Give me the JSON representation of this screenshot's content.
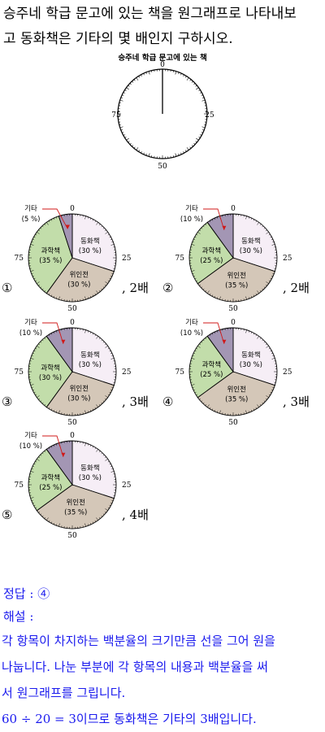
{
  "question": {
    "lines": [
      "승주네 학급 문고에 있는 책을 원그래프로 나타내보",
      "고 동화책은 기타의 몇 배인지 구하시오."
    ]
  },
  "reference_graph": {
    "title": "승주네 학급 문고에 있는 책",
    "ticks": [
      "0",
      "25",
      "50",
      "75"
    ]
  },
  "options": [
    {
      "marker": "①",
      "answer": "2배",
      "slices": [
        {
          "name": "동화책",
          "pct_label": "(30 %)",
          "percent": 30,
          "color": "#f6eef6"
        },
        {
          "name": "위인전",
          "pct_label": "(30 %)",
          "percent": 30,
          "color": "#d4c7b8"
        },
        {
          "name": "과학책",
          "pct_label": "(35 %)",
          "percent": 35,
          "color": "#c2ddaa"
        },
        {
          "name": "기타",
          "pct_label": "(5 %)",
          "percent": 5,
          "color": "#a396b4"
        }
      ]
    },
    {
      "marker": "②",
      "answer": "2배",
      "slices": [
        {
          "name": "동화책",
          "pct_label": "(30 %)",
          "percent": 30,
          "color": "#f6eef6"
        },
        {
          "name": "위인전",
          "pct_label": "(35 %)",
          "percent": 35,
          "color": "#d4c7b8"
        },
        {
          "name": "과학책",
          "pct_label": "(25 %)",
          "percent": 25,
          "color": "#c2ddaa"
        },
        {
          "name": "기타",
          "pct_label": "(10 %)",
          "percent": 10,
          "color": "#a396b4"
        }
      ]
    },
    {
      "marker": "③",
      "answer": "3배",
      "slices": [
        {
          "name": "동화책",
          "pct_label": "(30 %)",
          "percent": 30,
          "color": "#f6eef6"
        },
        {
          "name": "위인전",
          "pct_label": "(30 %)",
          "percent": 30,
          "color": "#d4c7b8"
        },
        {
          "name": "과학책",
          "pct_label": "(30 %)",
          "percent": 30,
          "color": "#c2ddaa"
        },
        {
          "name": "기타",
          "pct_label": "(10 %)",
          "percent": 10,
          "color": "#a396b4"
        }
      ]
    },
    {
      "marker": "④",
      "answer": "3배",
      "slices": [
        {
          "name": "동화책",
          "pct_label": "(30 %)",
          "percent": 30,
          "color": "#f6eef6"
        },
        {
          "name": "위인전",
          "pct_label": "(35 %)",
          "percent": 35,
          "color": "#d4c7b8"
        },
        {
          "name": "과학책",
          "pct_label": "(25 %)",
          "percent": 25,
          "color": "#c2ddaa"
        },
        {
          "name": "기타",
          "pct_label": "(10 %)",
          "percent": 10,
          "color": "#a396b4"
        }
      ]
    },
    {
      "marker": "⑤",
      "answer": "4배",
      "slices": [
        {
          "name": "동화책",
          "pct_label": "(30 %)",
          "percent": 30,
          "color": "#f6eef6"
        },
        {
          "name": "위인전",
          "pct_label": "(35 %)",
          "percent": 35,
          "color": "#d4c7b8"
        },
        {
          "name": "과학책",
          "pct_label": "(25 %)",
          "percent": 25,
          "color": "#c2ddaa"
        },
        {
          "name": "기타",
          "pct_label": "(10 %)",
          "percent": 10,
          "color": "#a396b4"
        }
      ]
    }
  ],
  "solution": {
    "answer_line": "정답 : ④",
    "explanation_label": "해설 :",
    "lines": [
      "각 항목이 차지하는 백분율의 크기만큼 선을 그어 원을",
      "나눕니다. 나눈 부분에 각 항목의 내용과 백분율을 써",
      "서 원그래프를 그립니다.",
      "60 ÷ 20 = 3이므로 동화책은 기타의 3배입니다."
    ],
    "color": "#1a1aee"
  },
  "chart_data": [
    {
      "type": "pie",
      "categories": [
        "동화책",
        "위인전",
        "과학책",
        "기타"
      ],
      "values": [
        30,
        30,
        35,
        5
      ]
    },
    {
      "type": "pie",
      "categories": [
        "동화책",
        "위인전",
        "과학책",
        "기타"
      ],
      "values": [
        30,
        35,
        25,
        10
      ]
    },
    {
      "type": "pie",
      "categories": [
        "동화책",
        "위인전",
        "과학책",
        "기타"
      ],
      "values": [
        30,
        30,
        30,
        10
      ]
    },
    {
      "type": "pie",
      "categories": [
        "동화책",
        "위인전",
        "과학책",
        "기타"
      ],
      "values": [
        30,
        35,
        25,
        10
      ]
    },
    {
      "type": "pie",
      "categories": [
        "동화책",
        "위인전",
        "과학책",
        "기타"
      ],
      "values": [
        30,
        35,
        25,
        10
      ]
    }
  ]
}
